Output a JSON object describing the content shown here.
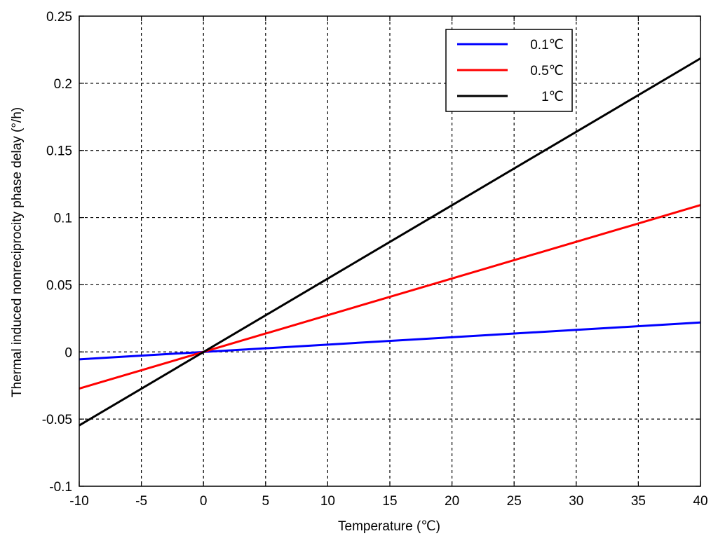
{
  "chart_data": {
    "type": "line",
    "title": "",
    "xlabel": "Temperature (℃)",
    "ylabel": "Thermal induced nonreciprocity phase delay (°/h)",
    "xlim": [
      -10,
      40
    ],
    "ylim": [
      -0.1,
      0.25
    ],
    "xticks": [
      -10,
      -5,
      0,
      5,
      10,
      15,
      20,
      25,
      30,
      35,
      40
    ],
    "yticks": [
      -0.1,
      -0.05,
      0,
      0.05,
      0.1,
      0.15,
      0.2,
      0.25
    ],
    "xtick_labels": [
      "-10",
      "-5",
      "0",
      "5",
      "10",
      "15",
      "20",
      "25",
      "30",
      "35",
      "40"
    ],
    "ytick_labels": [
      "-0.1",
      "-0.05",
      "0",
      "0.05",
      "0.1",
      "0.15",
      "0.2",
      "0.25"
    ],
    "grid": true,
    "legend_position": "top-right",
    "x": [
      -10,
      40
    ],
    "series": [
      {
        "name": "0.1℃",
        "color": "#0000ff",
        "values": [
          -0.0055,
          0.0219
        ]
      },
      {
        "name": "0.5℃",
        "color": "#ff0000",
        "values": [
          -0.0273,
          0.1093
        ]
      },
      {
        "name": "1℃",
        "color": "#000000",
        "values": [
          -0.0547,
          0.2185
        ]
      }
    ]
  }
}
